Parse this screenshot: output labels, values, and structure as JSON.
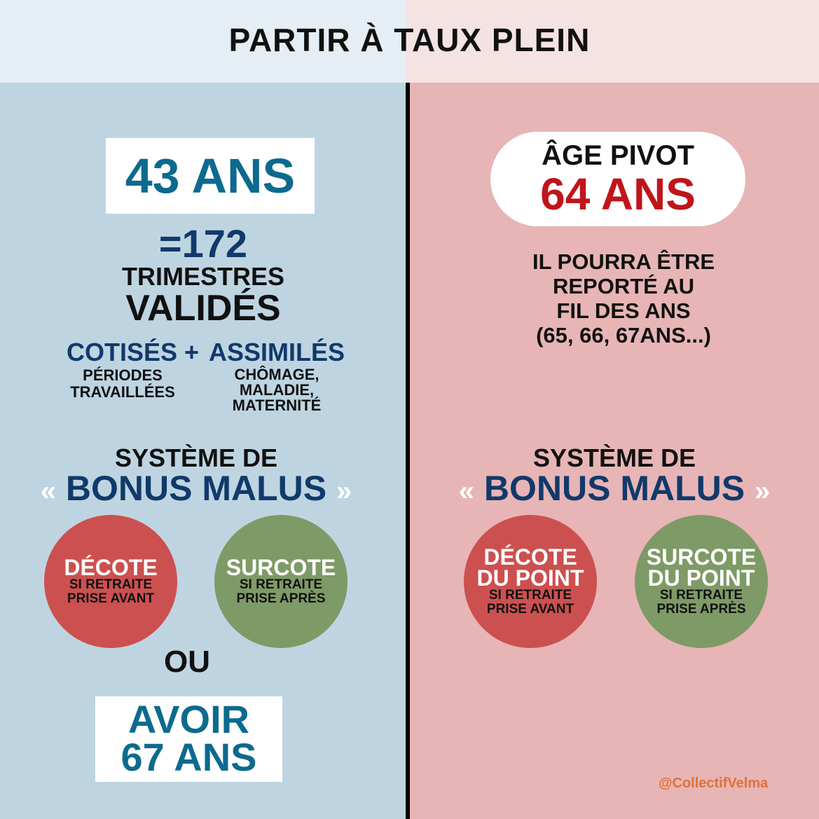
{
  "title": "PARTIR À TAUX PLEIN",
  "colors": {
    "left_bg": "#bed5e1",
    "right_bg": "#e7b5b5",
    "blue": "#0d6a8e",
    "navy": "#11396b",
    "red_text": "#c0141a",
    "decote": "#cc5050",
    "surcote": "#7e9a66",
    "handle": "#e0703a"
  },
  "left": {
    "years": "43 ANS",
    "quarters": "=172",
    "trimestres": "TRIMESTRES",
    "valides": "VALIDÉS",
    "cotises": "COTISÉS",
    "plus": "+",
    "assimiles": "ASSIMILÉS",
    "cotises_desc": [
      "PÉRIODES",
      "TRAVAILLÉES"
    ],
    "assimiles_desc": [
      "CHÔMAGE,",
      "MALADIE,",
      "MATERNITÉ"
    ],
    "system": "SYSTÈME DE",
    "open_quote": "«",
    "bonus": "BONUS MALUS",
    "close_quote": "»",
    "decote": {
      "title": "DÉCOTE",
      "sub": [
        "SI RETRAITE",
        "PRISE AVANT"
      ]
    },
    "surcote": {
      "title": "SURCOTE",
      "sub": [
        "SI RETRAITE",
        "PRISE APRÈS"
      ]
    },
    "or": "OU",
    "avoir": [
      "AVOIR",
      "67 ANS"
    ]
  },
  "right": {
    "pivot": "ÂGE PIVOT",
    "age": "64 ANS",
    "note": [
      "IL POURRA ÊTRE",
      "REPORTÉ AU",
      "FIL DES ANS",
      "(65, 66, 67ANS...)"
    ],
    "system": "SYSTÈME DE",
    "open_quote": "«",
    "bonus": "BONUS MALUS",
    "close_quote": "»",
    "decote": {
      "title": [
        "DÉCOTE",
        "DU POINT"
      ],
      "sub": [
        "SI RETRAITE",
        "PRISE AVANT"
      ]
    },
    "surcote": {
      "title": [
        "SURCOTE",
        "DU POINT"
      ],
      "sub": [
        "SI RETRAITE",
        "PRISE APRÈS"
      ]
    }
  },
  "handle": "@CollectifVelma"
}
